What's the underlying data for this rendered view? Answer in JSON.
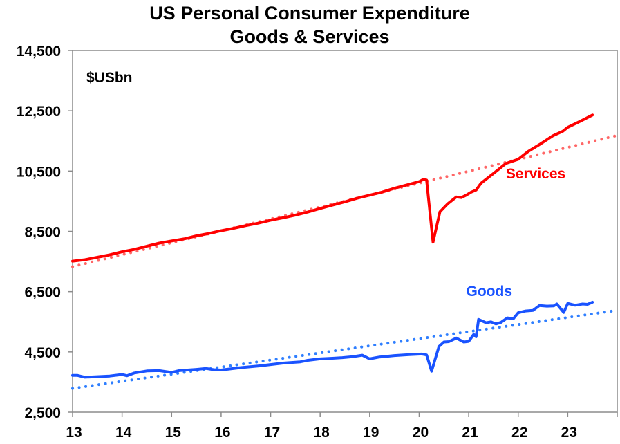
{
  "chart_data": {
    "type": "line",
    "title": [
      "US Personal Consumer Expenditure",
      "Goods & Services"
    ],
    "unit_label": "$USbn",
    "xlabel": "",
    "ylabel": "",
    "xlim": [
      2013,
      2024
    ],
    "ylim": [
      2500,
      14500
    ],
    "x_ticks": [
      2013,
      2014,
      2015,
      2016,
      2017,
      2018,
      2019,
      2020,
      2021,
      2022,
      2023,
      2024
    ],
    "x_tick_labels": [
      "13",
      "14",
      "15",
      "16",
      "17",
      "18",
      "19",
      "20",
      "21",
      "22",
      "23"
    ],
    "y_ticks": [
      2500,
      4500,
      6500,
      8500,
      10500,
      12500,
      14500
    ],
    "y_tick_labels": [
      "2,500",
      "4,500",
      "6,500",
      "8,500",
      "10,500",
      "12,500",
      "14,500"
    ],
    "grid": false,
    "series": [
      {
        "name": "Services",
        "color": "#ff0000",
        "style": "solid",
        "label": "Services",
        "label_anchor": [
          2021.75,
          10250
        ],
        "points": [
          [
            2013.0,
            7510
          ],
          [
            2013.25,
            7560
          ],
          [
            2013.5,
            7640
          ],
          [
            2013.75,
            7720
          ],
          [
            2014.0,
            7820
          ],
          [
            2014.25,
            7900
          ],
          [
            2014.5,
            8010
          ],
          [
            2014.75,
            8110
          ],
          [
            2015.0,
            8180
          ],
          [
            2015.25,
            8250
          ],
          [
            2015.5,
            8350
          ],
          [
            2015.75,
            8430
          ],
          [
            2016.0,
            8520
          ],
          [
            2016.25,
            8600
          ],
          [
            2016.5,
            8690
          ],
          [
            2016.75,
            8770
          ],
          [
            2017.0,
            8870
          ],
          [
            2017.25,
            8950
          ],
          [
            2017.5,
            9040
          ],
          [
            2017.75,
            9140
          ],
          [
            2018.0,
            9260
          ],
          [
            2018.25,
            9370
          ],
          [
            2018.5,
            9480
          ],
          [
            2018.75,
            9600
          ],
          [
            2019.0,
            9700
          ],
          [
            2019.25,
            9800
          ],
          [
            2019.5,
            9930
          ],
          [
            2019.75,
            10040
          ],
          [
            2020.0,
            10150
          ],
          [
            2020.08,
            10220
          ],
          [
            2020.15,
            10200
          ],
          [
            2020.28,
            8140
          ],
          [
            2020.42,
            9150
          ],
          [
            2020.58,
            9420
          ],
          [
            2020.75,
            9640
          ],
          [
            2020.85,
            9620
          ],
          [
            2020.95,
            9700
          ],
          [
            2021.05,
            9800
          ],
          [
            2021.15,
            9870
          ],
          [
            2021.25,
            10100
          ],
          [
            2021.5,
            10420
          ],
          [
            2021.75,
            10750
          ],
          [
            2022.0,
            10890
          ],
          [
            2022.2,
            11150
          ],
          [
            2022.45,
            11400
          ],
          [
            2022.7,
            11670
          ],
          [
            2022.9,
            11820
          ],
          [
            2023.0,
            11950
          ],
          [
            2023.25,
            12150
          ],
          [
            2023.5,
            12360
          ]
        ]
      },
      {
        "name": "Services trend",
        "color": "#ff6666",
        "style": "dotted",
        "points": [
          [
            2013.0,
            7330
          ],
          [
            2024.0,
            11680
          ]
        ]
      },
      {
        "name": "Goods",
        "color": "#1a53ff",
        "style": "solid",
        "label": "Goods",
        "label_anchor": [
          2020.95,
          6350
        ],
        "points": [
          [
            2013.0,
            3720
          ],
          [
            2013.1,
            3720
          ],
          [
            2013.25,
            3660
          ],
          [
            2013.5,
            3680
          ],
          [
            2013.75,
            3700
          ],
          [
            2014.0,
            3750
          ],
          [
            2014.1,
            3710
          ],
          [
            2014.25,
            3800
          ],
          [
            2014.5,
            3870
          ],
          [
            2014.75,
            3880
          ],
          [
            2015.0,
            3820
          ],
          [
            2015.15,
            3880
          ],
          [
            2015.5,
            3920
          ],
          [
            2015.7,
            3950
          ],
          [
            2015.85,
            3910
          ],
          [
            2016.0,
            3900
          ],
          [
            2016.4,
            3980
          ],
          [
            2016.8,
            4040
          ],
          [
            2017.0,
            4080
          ],
          [
            2017.25,
            4130
          ],
          [
            2017.6,
            4170
          ],
          [
            2017.75,
            4220
          ],
          [
            2018.0,
            4270
          ],
          [
            2018.25,
            4290
          ],
          [
            2018.45,
            4310
          ],
          [
            2018.65,
            4340
          ],
          [
            2018.85,
            4390
          ],
          [
            2019.0,
            4270
          ],
          [
            2019.1,
            4300
          ],
          [
            2019.2,
            4330
          ],
          [
            2019.5,
            4380
          ],
          [
            2019.8,
            4410
          ],
          [
            2020.05,
            4430
          ],
          [
            2020.15,
            4400
          ],
          [
            2020.25,
            3860
          ],
          [
            2020.4,
            4680
          ],
          [
            2020.5,
            4830
          ],
          [
            2020.6,
            4840
          ],
          [
            2020.75,
            4960
          ],
          [
            2020.9,
            4830
          ],
          [
            2021.0,
            4850
          ],
          [
            2021.1,
            5080
          ],
          [
            2021.15,
            5000
          ],
          [
            2021.2,
            5580
          ],
          [
            2021.35,
            5470
          ],
          [
            2021.45,
            5500
          ],
          [
            2021.55,
            5430
          ],
          [
            2021.65,
            5480
          ],
          [
            2021.78,
            5630
          ],
          [
            2021.9,
            5600
          ],
          [
            2022.0,
            5800
          ],
          [
            2022.15,
            5860
          ],
          [
            2022.3,
            5880
          ],
          [
            2022.43,
            6040
          ],
          [
            2022.58,
            6020
          ],
          [
            2022.72,
            6030
          ],
          [
            2022.78,
            6090
          ],
          [
            2022.92,
            5810
          ],
          [
            2023.0,
            6110
          ],
          [
            2023.15,
            6050
          ],
          [
            2023.3,
            6090
          ],
          [
            2023.4,
            6080
          ],
          [
            2023.5,
            6150
          ]
        ]
      },
      {
        "name": "Goods trend",
        "color": "#2f7fff",
        "style": "dotted",
        "points": [
          [
            2013.0,
            3290
          ],
          [
            2024.0,
            5880
          ]
        ]
      }
    ]
  }
}
